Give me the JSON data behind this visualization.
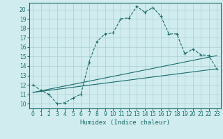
{
  "xlabel": "Humidex (Indice chaleur)",
  "bg_color": "#d0ecee",
  "grid_color": "#aacfd4",
  "line_color": "#1a6b6b",
  "xlim": [
    -0.5,
    23.5
  ],
  "ylim": [
    9.5,
    20.7
  ],
  "xticks": [
    0,
    1,
    2,
    3,
    4,
    5,
    6,
    7,
    8,
    9,
    10,
    11,
    12,
    13,
    14,
    15,
    16,
    17,
    18,
    19,
    20,
    21,
    22,
    23
  ],
  "yticks": [
    10,
    11,
    12,
    13,
    14,
    15,
    16,
    17,
    18,
    19,
    20
  ],
  "curve1_x": [
    0,
    1,
    2,
    3,
    4,
    5,
    6,
    7,
    8,
    9,
    10,
    11,
    12,
    13,
    14,
    15,
    16,
    17,
    18,
    19,
    20,
    21,
    22,
    23
  ],
  "curve1_y": [
    12.0,
    11.4,
    11.0,
    10.0,
    10.1,
    10.6,
    11.0,
    14.4,
    16.6,
    17.4,
    17.5,
    19.0,
    19.1,
    20.3,
    19.7,
    20.2,
    19.3,
    17.4,
    17.4,
    15.3,
    15.8,
    15.2,
    15.1,
    13.7
  ],
  "curve2_x": [
    0,
    23
  ],
  "curve2_y": [
    11.2,
    13.7
  ],
  "curve3_x": [
    0,
    23
  ],
  "curve3_y": [
    11.2,
    15.1
  ],
  "xlabel_fontsize": 6.5,
  "tick_fontsize": 5.5
}
